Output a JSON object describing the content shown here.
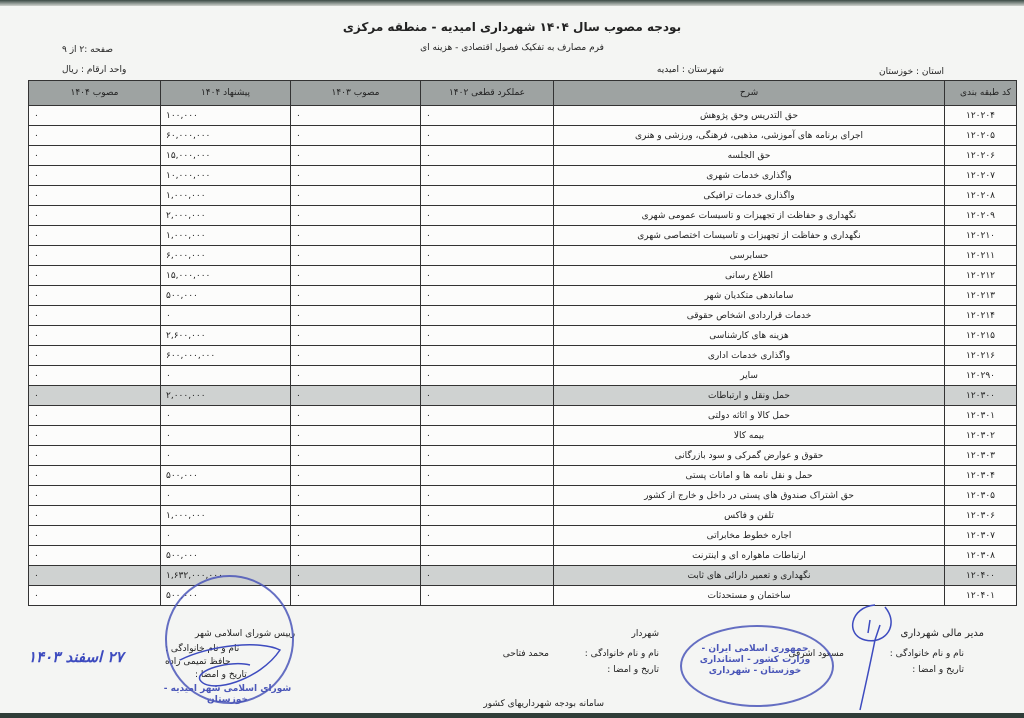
{
  "header": {
    "title": "بودجه مصوب سال ۱۴۰۴ شهرداری امیدیه - منطقه مرکزی",
    "subtitle": "فرم مصارف به تفکیک فصول اقتصادی - هزینه ای",
    "page": "صفحه :۲ از ۹",
    "unit": "واحد ارقام : ریال",
    "province": "استان :  خوزستان",
    "city": "شهرستان :  امیدیه"
  },
  "table": {
    "columns": [
      "کد طبقه بندی",
      "شرح",
      "عملکرد قطعی ۱۴۰۲",
      "مصوب ۱۴۰۳",
      "پیشنهاد ۱۴۰۴",
      "مصوب ۱۴۰۴"
    ],
    "rows": [
      {
        "code": "۱۲۰۲۰۴",
        "desc": "حق التدریس وحق پژوهش",
        "actual": "۰",
        "approved1403": "۰",
        "proposed": "۱۰۰,۰۰۰",
        "approved1404": "۰"
      },
      {
        "code": "۱۲۰۲۰۵",
        "desc": "اجرای برنامه های آموزشی، مذهبی، فرهنگی، ورزشی و هنری",
        "actual": "۰",
        "approved1403": "۰",
        "proposed": "۶۰,۰۰۰,۰۰۰",
        "approved1404": "۰"
      },
      {
        "code": "۱۲۰۲۰۶",
        "desc": "حق الجلسه",
        "actual": "۰",
        "approved1403": "۰",
        "proposed": "۱۵,۰۰۰,۰۰۰",
        "approved1404": "۰"
      },
      {
        "code": "۱۲۰۲۰۷",
        "desc": "واگذاری خدمات شهری",
        "actual": "۰",
        "approved1403": "۰",
        "proposed": "۱۰,۰۰۰,۰۰۰",
        "approved1404": "۰"
      },
      {
        "code": "۱۲۰۲۰۸",
        "desc": "واگذاری خدمات ترافیکی",
        "actual": "۰",
        "approved1403": "۰",
        "proposed": "۱,۰۰۰,۰۰۰",
        "approved1404": "۰"
      },
      {
        "code": "۱۲۰۲۰۹",
        "desc": "نگهداری و حفاظت از تجهیزات و تاسیسات عمومی شهری",
        "actual": "۰",
        "approved1403": "۰",
        "proposed": "۲,۰۰۰,۰۰۰",
        "approved1404": "۰"
      },
      {
        "code": "۱۲۰۲۱۰",
        "desc": "نگهداری و حفاظت از تجهیزات و تاسیسات اختصاصی شهری",
        "actual": "۰",
        "approved1403": "۰",
        "proposed": "۱,۰۰۰,۰۰۰",
        "approved1404": "۰"
      },
      {
        "code": "۱۲۰۲۱۱",
        "desc": "حسابرسی",
        "actual": "۰",
        "approved1403": "۰",
        "proposed": "۶,۰۰۰,۰۰۰",
        "approved1404": "۰"
      },
      {
        "code": "۱۲۰۲۱۲",
        "desc": "اطلاع رسانی",
        "actual": "۰",
        "approved1403": "۰",
        "proposed": "۱۵,۰۰۰,۰۰۰",
        "approved1404": "۰"
      },
      {
        "code": "۱۲۰۲۱۳",
        "desc": "ساماندهی متکدیان شهر",
        "actual": "۰",
        "approved1403": "۰",
        "proposed": "۵۰۰,۰۰۰",
        "approved1404": "۰"
      },
      {
        "code": "۱۲۰۲۱۴",
        "desc": "خدمات قراردادی اشخاص حقوقی",
        "actual": "۰",
        "approved1403": "۰",
        "proposed": "۰",
        "approved1404": "۰"
      },
      {
        "code": "۱۲۰۲۱۵",
        "desc": "هزینه های کارشناسی",
        "actual": "۰",
        "approved1403": "۰",
        "proposed": "۲,۶۰۰,۰۰۰",
        "approved1404": "۰"
      },
      {
        "code": "۱۲۰۲۱۶",
        "desc": "واگذاری خدمات اداری",
        "actual": "۰",
        "approved1403": "۰",
        "proposed": "۶۰۰,۰۰۰,۰۰۰",
        "approved1404": "۰"
      },
      {
        "code": "۱۲۰۲۹۰",
        "desc": "سایر",
        "actual": "۰",
        "approved1403": "۰",
        "proposed": "۰",
        "approved1404": "۰"
      },
      {
        "code": "۱۲۰۳۰۰",
        "desc": "حمل ونقل و ارتباطات",
        "actual": "۰",
        "approved1403": "۰",
        "proposed": "۲,۰۰۰,۰۰۰",
        "approved1404": "۰",
        "group": true
      },
      {
        "code": "۱۲۰۳۰۱",
        "desc": "حمل کالا و اثاثه دولتی",
        "actual": "۰",
        "approved1403": "۰",
        "proposed": "۰",
        "approved1404": "۰"
      },
      {
        "code": "۱۲۰۳۰۲",
        "desc": "بیمه کالا",
        "actual": "۰",
        "approved1403": "۰",
        "proposed": "۰",
        "approved1404": "۰"
      },
      {
        "code": "۱۲۰۳۰۳",
        "desc": "حقوق و عوارض گمرکی و سود بازرگانی",
        "actual": "۰",
        "approved1403": "۰",
        "proposed": "۰",
        "approved1404": "۰"
      },
      {
        "code": "۱۲۰۳۰۴",
        "desc": "حمل و نقل نامه ها و امانات پستی",
        "actual": "۰",
        "approved1403": "۰",
        "proposed": "۵۰۰,۰۰۰",
        "approved1404": "۰"
      },
      {
        "code": "۱۲۰۳۰۵",
        "desc": "حق اشتراک صندوق های پستی در داخل و خارج از کشور",
        "actual": "۰",
        "approved1403": "۰",
        "proposed": "۰",
        "approved1404": "۰"
      },
      {
        "code": "۱۲۰۳۰۶",
        "desc": "تلفن و فاکس",
        "actual": "۰",
        "approved1403": "۰",
        "proposed": "۱,۰۰۰,۰۰۰",
        "approved1404": "۰"
      },
      {
        "code": "۱۲۰۳۰۷",
        "desc": "اجاره خطوط مخابراتی",
        "actual": "۰",
        "approved1403": "۰",
        "proposed": "۰",
        "approved1404": "۰"
      },
      {
        "code": "۱۲۰۳۰۸",
        "desc": "ارتباطات ماهواره ای و اینترنت",
        "actual": "۰",
        "approved1403": "۰",
        "proposed": "۵۰۰,۰۰۰",
        "approved1404": "۰"
      },
      {
        "code": "۱۲۰۴۰۰",
        "desc": "نگهداری و تعمیر دارائی های ثابت",
        "actual": "۰",
        "approved1403": "۰",
        "proposed": "۱,۶۳۲,۰۰۰,۰۰۰",
        "approved1404": "۰",
        "group": true
      },
      {
        "code": "۱۲۰۴۰۱",
        "desc": "ساختمان و مستحدثات",
        "actual": "۰",
        "approved1403": "۰",
        "proposed": "۵۰۰,۰۰۰",
        "approved1404": "۰"
      }
    ]
  },
  "footer": {
    "finance_manager": {
      "role": "مدیر مالی شهرداری",
      "name_label": "نام و نام خانوادگی :",
      "name": "مسعود اشرفی",
      "sign_label": "تاریخ و امضا :"
    },
    "mayor": {
      "role": "شهردار",
      "name_label": "نام و نام خانوادگی :",
      "name": "محمد فتاحی",
      "sign_label": "تاریخ و امضا :",
      "system": "سامانه بودجه شهرداریهای کشور"
    },
    "council": {
      "role": "رییس شورای اسلامی شهر",
      "name_label": "نام و نام خانوادگی :",
      "name": "حافظ تمیمی زاده",
      "sign_label": "تاریخ و امضا :"
    },
    "handwritten_date": "۲۷ اسفند ۱۴۰۳",
    "stamp_left": "شورای اسلامی شهر امیدیه - خوزستان",
    "stamp_right": "جمهوری اسلامی ایران - وزارت کشور - استانداری خوزستان - شهرداری"
  },
  "colors": {
    "header_fill": "#9ea3a2",
    "group_fill": "#cfd2d1",
    "stamp": "#4a56b8"
  }
}
